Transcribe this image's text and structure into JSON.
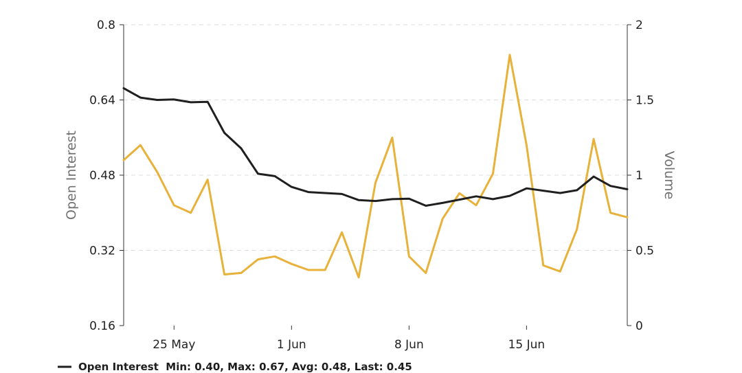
{
  "chart_data": {
    "type": "line",
    "x_axis": {
      "tick_labels": [
        "25 May",
        "1 Jun",
        "8 Jun",
        "15 Jun"
      ],
      "tick_dates": [
        "2023-05-25",
        "2023-06-01",
        "2023-06-08",
        "2023-06-15"
      ],
      "range": [
        "2023-05-22",
        "2023-06-21"
      ]
    },
    "y_left": {
      "label": "Open Interest",
      "ylim": [
        0.16,
        0.8
      ],
      "ticks": [
        "0.16",
        "0.32",
        "0.48",
        "0.64",
        "0.8"
      ]
    },
    "y_right": {
      "label": "Volume",
      "ylim": [
        0,
        2
      ],
      "ticks": [
        "0",
        "0.5",
        "1",
        "1.5",
        "2"
      ]
    },
    "grid": "horizontal dashed",
    "legend_position": "bottom-left",
    "series": [
      {
        "name": "Open Interest",
        "axis": "left",
        "color": "#1f1f1f",
        "x": [
          "2023-05-22",
          "2023-05-23",
          "2023-05-24",
          "2023-05-25",
          "2023-05-26",
          "2023-05-27",
          "2023-05-28",
          "2023-05-29",
          "2023-05-30",
          "2023-05-31",
          "2023-06-01",
          "2023-06-02",
          "2023-06-03",
          "2023-06-04",
          "2023-06-05",
          "2023-06-06",
          "2023-06-07",
          "2023-06-08",
          "2023-06-09",
          "2023-06-10",
          "2023-06-11",
          "2023-06-12",
          "2023-06-13",
          "2023-06-14",
          "2023-06-15",
          "2023-06-16",
          "2023-06-17",
          "2023-06-18",
          "2023-06-19",
          "2023-06-20",
          "2023-06-21"
        ],
        "values": [
          0.665,
          0.645,
          0.64,
          0.641,
          0.635,
          0.636,
          0.57,
          0.537,
          0.483,
          0.478,
          0.455,
          0.444,
          0.442,
          0.44,
          0.427,
          0.425,
          0.429,
          0.43,
          0.415,
          0.421,
          0.428,
          0.435,
          0.429,
          0.436,
          0.452,
          0.447,
          0.442,
          0.448,
          0.477,
          0.457,
          0.45
        ],
        "legend_text": "Open Interest  Min: 0.40, Max: 0.67, Avg: 0.48, Last: 0.45"
      },
      {
        "name": "Volume",
        "axis": "right",
        "color": "#e8b23a",
        "x": [
          "2023-05-22",
          "2023-05-23",
          "2023-05-24",
          "2023-05-25",
          "2023-05-26",
          "2023-05-27",
          "2023-05-28",
          "2023-05-29",
          "2023-05-30",
          "2023-05-31",
          "2023-06-01",
          "2023-06-02",
          "2023-06-03",
          "2023-06-04",
          "2023-06-05",
          "2023-06-06",
          "2023-06-07",
          "2023-06-08",
          "2023-06-09",
          "2023-06-10",
          "2023-06-11",
          "2023-06-12",
          "2023-06-13",
          "2023-06-14",
          "2023-06-15",
          "2023-06-16",
          "2023-06-17",
          "2023-06-18",
          "2023-06-19",
          "2023-06-20",
          "2023-06-21"
        ],
        "values": [
          1.1,
          1.2,
          1.02,
          0.8,
          0.75,
          0.97,
          0.34,
          0.35,
          0.44,
          0.46,
          0.41,
          0.37,
          0.37,
          0.62,
          0.32,
          0.95,
          1.25,
          0.46,
          0.35,
          0.71,
          0.88,
          0.8,
          1.01,
          1.8,
          1.2,
          0.4,
          0.36,
          0.64,
          1.24,
          0.75,
          0.72
        ]
      }
    ]
  }
}
